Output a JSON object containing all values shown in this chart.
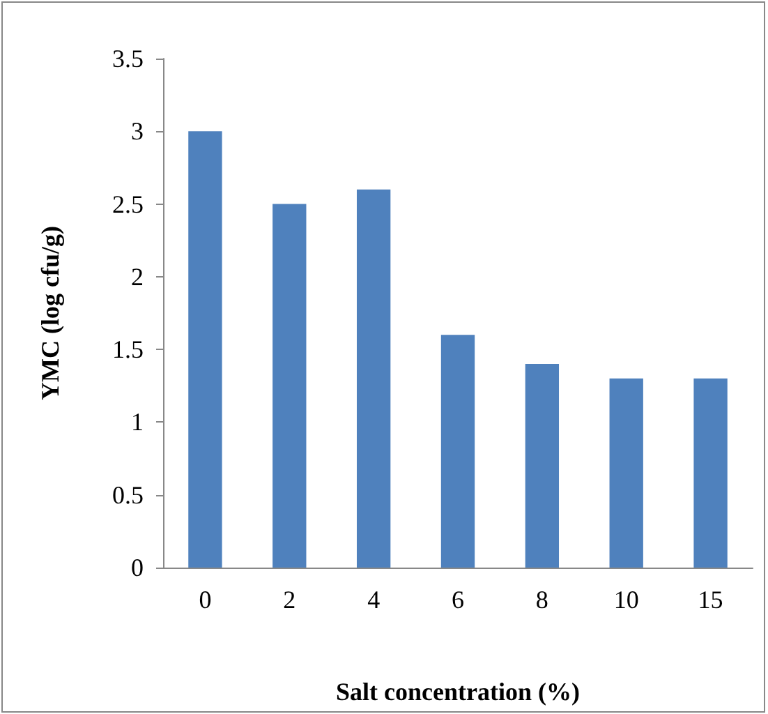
{
  "chart_data": {
    "type": "bar",
    "xlabel": "Salt concentration (%)",
    "ylabel": "YMC (log cfu/g)",
    "categories": [
      "0",
      "2",
      "4",
      "6",
      "8",
      "10",
      "15"
    ],
    "values": [
      3,
      2.5,
      2.6,
      1.6,
      1.4,
      1.3,
      1.3
    ],
    "color": "#4f81bd",
    "ylim": [
      0,
      3.5
    ],
    "yticks": [
      0,
      0.5,
      1,
      1.5,
      2,
      2.5,
      3,
      3.5
    ],
    "grid": false
  }
}
